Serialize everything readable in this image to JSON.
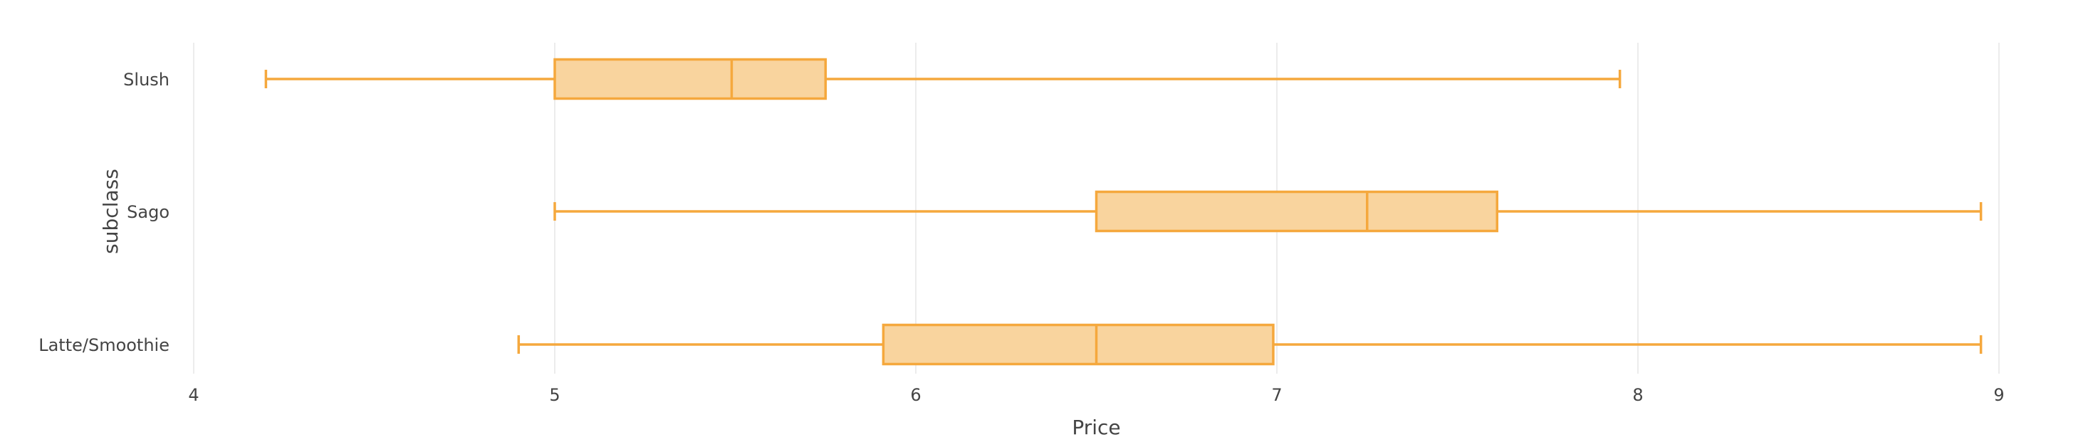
{
  "chart_data": {
    "type": "box",
    "orientation": "horizontal",
    "xlabel": "Price",
    "ylabel": "subclass",
    "xlim": [
      4,
      9
    ],
    "x_ticks": [
      4,
      5,
      6,
      7,
      8,
      9
    ],
    "grid": true,
    "color": "#f5a83d",
    "fill_color": "#f9d49e",
    "categories": [
      "Slush",
      "Sago",
      "Latte/Smoothie"
    ],
    "boxes": [
      {
        "category": "Slush",
        "min": 4.2,
        "q1": 5.0,
        "median": 5.49,
        "q3": 5.75,
        "max": 7.95
      },
      {
        "category": "Sago",
        "min": 5.0,
        "q1": 6.5,
        "median": 7.25,
        "q3": 7.61,
        "max": 8.95
      },
      {
        "category": "Latte/Smoothie",
        "min": 4.9,
        "q1": 5.91,
        "median": 6.5,
        "q3": 6.99,
        "max": 8.95
      }
    ]
  }
}
